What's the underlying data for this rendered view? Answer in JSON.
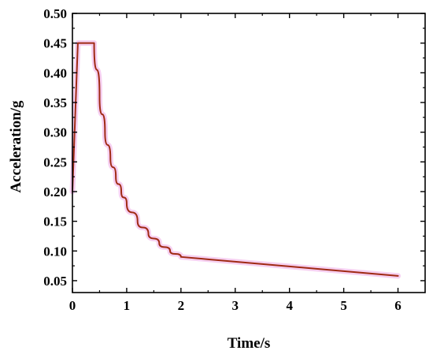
{
  "chart_data": {
    "type": "line",
    "title": "",
    "xlabel": "Time/s",
    "ylabel": "Acceleration/g",
    "xlim": [
      0,
      6.5
    ],
    "ylim": [
      0.03,
      0.5
    ],
    "x_ticks": [
      0,
      1,
      2,
      3,
      4,
      5,
      6
    ],
    "x_tick_labels": [
      "0",
      "1",
      "2",
      "3",
      "4",
      "5",
      "6"
    ],
    "y_ticks": [
      0.05,
      0.1,
      0.15,
      0.2,
      0.25,
      0.3,
      0.35,
      0.4,
      0.45,
      0.5
    ],
    "y_tick_labels": [
      "0.05",
      "0.10",
      "0.15",
      "0.20",
      "0.25",
      "0.30",
      "0.35",
      "0.40",
      "0.45",
      "0.50"
    ],
    "grid": false,
    "line_color": "#a02a14",
    "shadow_color": "#f4c8ee",
    "series": [
      {
        "x": [
          0,
          0.1,
          0.4,
          0.5,
          0.6,
          0.7,
          0.8,
          0.9,
          1.0,
          1.2,
          1.4,
          1.6,
          1.8,
          2.0,
          2.5,
          3.0,
          3.5,
          4.0,
          4.5,
          5.0,
          5.5,
          6.0
        ],
        "values": [
          0.2,
          0.45,
          0.45,
          0.36,
          0.3,
          0.257,
          0.225,
          0.2,
          0.18,
          0.15,
          0.129,
          0.113,
          0.1,
          0.09,
          0.086,
          0.082,
          0.078,
          0.074,
          0.07,
          0.066,
          0.062,
          0.058
        ]
      }
    ]
  }
}
